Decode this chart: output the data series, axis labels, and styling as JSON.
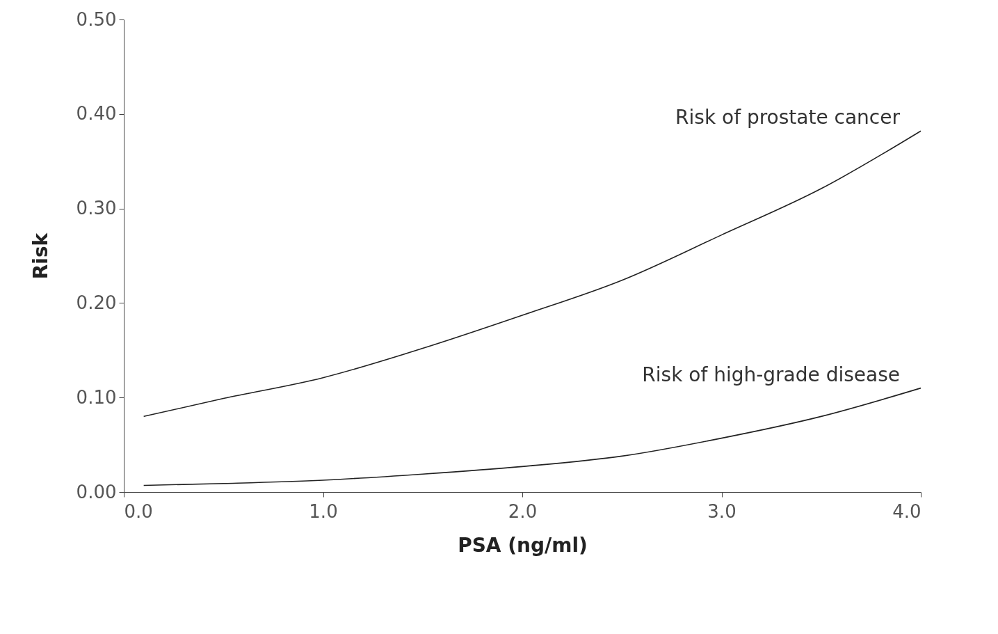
{
  "chart_data": {
    "type": "line",
    "xlabel": "PSA (ng/ml)",
    "ylabel": "Risk",
    "xlim": [
      0,
      4
    ],
    "ylim": [
      0,
      0.5
    ],
    "xticks": [
      {
        "value": 0,
        "label": "0.0"
      },
      {
        "value": 1,
        "label": "1.0"
      },
      {
        "value": 2,
        "label": "2.0"
      },
      {
        "value": 3,
        "label": "3.0"
      },
      {
        "value": 4,
        "label": "4.0"
      }
    ],
    "yticks": [
      {
        "value": 0,
        "label": "0.00"
      },
      {
        "value": 0.1,
        "label": "0.10"
      },
      {
        "value": 0.2,
        "label": "0.20"
      },
      {
        "value": 0.3,
        "label": "0.30"
      },
      {
        "value": 0.4,
        "label": "0.40"
      },
      {
        "value": 0.5,
        "label": "0.50"
      }
    ],
    "x": [
      0.1,
      0.5,
      1.0,
      1.5,
      2.0,
      2.5,
      3.0,
      3.5,
      4.0
    ],
    "series": [
      {
        "name": "Risk of prostate cancer",
        "color": "#222222",
        "values": [
          0.08,
          0.099,
          0.121,
          0.152,
          0.187,
          0.224,
          0.272,
          0.321,
          0.382
        ]
      },
      {
        "name": "Risk of high-grade disease",
        "color": "#222222",
        "values": [
          0.007,
          0.009,
          0.0125,
          0.019,
          0.027,
          0.038,
          0.057,
          0.08,
          0.11
        ]
      }
    ],
    "grid": false,
    "legend": false,
    "marker": "none",
    "line_style": "solid"
  }
}
